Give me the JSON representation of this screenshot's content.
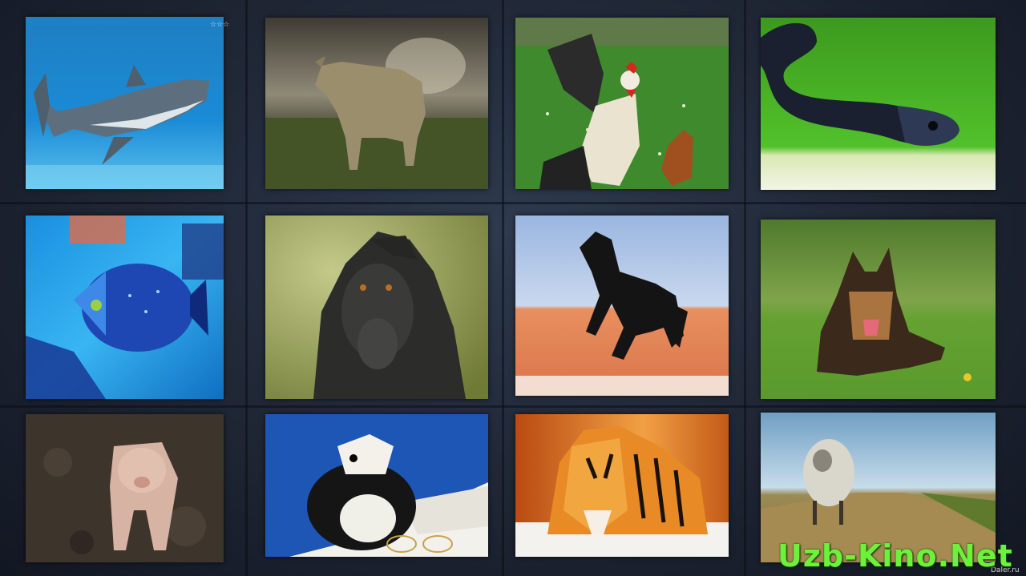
{
  "gallery": {
    "tiles": [
      {
        "subject": "shark"
      },
      {
        "subject": "bull"
      },
      {
        "subject": "rooster"
      },
      {
        "subject": "snake"
      },
      {
        "subject": "tropical-fish"
      },
      {
        "subject": "monkey"
      },
      {
        "subject": "horse"
      },
      {
        "subject": "dog"
      },
      {
        "subject": "pig"
      },
      {
        "subject": "guinea-pig"
      },
      {
        "subject": "tiger"
      },
      {
        "subject": "sheep"
      }
    ]
  },
  "watermark": {
    "text": "Uzb-Kino.Net",
    "color": "#6cf23a"
  },
  "image_marks": {
    "top": "☆☆☆",
    "bottom": "Daler.ru"
  },
  "colors": {
    "background": "#1b2230"
  }
}
